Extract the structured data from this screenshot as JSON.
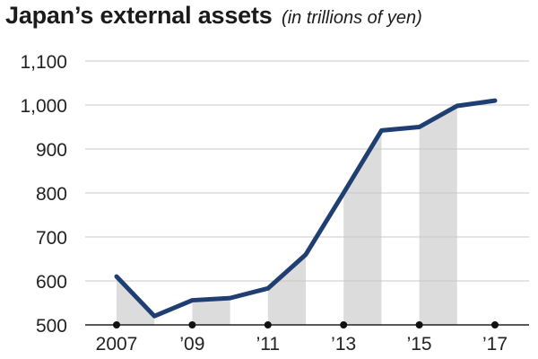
{
  "header": {
    "title": "Japan’s external assets",
    "subtitle": "(in trillions of yen)"
  },
  "colors": {
    "line": "#1f3f73",
    "shade": "#dcdcdc",
    "grid": "#c9c9c9",
    "axis": "#222222",
    "dot": "#111111"
  },
  "chart_data": {
    "type": "line",
    "title": "Japan’s external assets",
    "subtitle": "(in trillions of yen)",
    "xlabel": "",
    "ylabel": "",
    "x": [
      2007,
      2008,
      2009,
      2010,
      2011,
      2012,
      2013,
      2014,
      2015,
      2016,
      2017
    ],
    "series": [
      {
        "values": [
          610,
          520,
          556,
          561,
          583,
          660,
          800,
          942,
          950,
          998,
          1010
        ]
      }
    ],
    "ylim": [
      500,
      1100
    ],
    "yticks": [
      500,
      600,
      700,
      800,
      900,
      1000,
      1100
    ],
    "ytick_labels": [
      "500",
      "600",
      "700",
      "800",
      "900",
      "1,000",
      "1,100"
    ],
    "xticks": [
      2007,
      2009,
      2011,
      2013,
      2015,
      2017
    ],
    "xtick_labels": [
      "2007",
      "’09",
      "’11",
      "’13",
      "’15",
      "’17"
    ],
    "shaded_intervals": [
      [
        2007,
        2008
      ],
      [
        2009,
        2010
      ],
      [
        2011,
        2012
      ],
      [
        2013,
        2014
      ],
      [
        2015,
        2016
      ]
    ],
    "grid": true
  }
}
